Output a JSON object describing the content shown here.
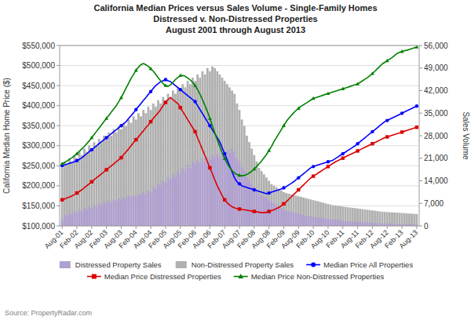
{
  "chart_data": {
    "type": "bar",
    "title": "California Median Prices versus Sales Volume -  Single-Family Homes",
    "subtitle": [
      "Distressed v. Non-Distressed Properties",
      "August 2001 through August 2013"
    ],
    "source": "Source: PropertyRadar.com",
    "ylabel": "California Median Home Price ($)",
    "y2label": "Sales Volume",
    "grid": true,
    "legend": "bottom",
    "ylim": [
      100000,
      550000
    ],
    "yticks": [
      {
        "value": 100000,
        "label": "$100,000"
      },
      {
        "value": 150000,
        "label": "$150,000"
      },
      {
        "value": 200000,
        "label": "$200,000"
      },
      {
        "value": 250000,
        "label": "$250,000"
      },
      {
        "value": 300000,
        "label": "$300,000"
      },
      {
        "value": 350000,
        "label": "$350,000"
      },
      {
        "value": 400000,
        "label": "$400,000"
      },
      {
        "value": 450000,
        "label": "$450,000"
      },
      {
        "value": 500000,
        "label": "$500,000"
      },
      {
        "value": 550000,
        "label": "$550,000"
      }
    ],
    "y2lim": [
      0,
      56000
    ],
    "y2ticks": [
      0,
      {
        "value": 7000,
        "label": "7,000"
      },
      {
        "value": 14000,
        "label": "14,000"
      },
      {
        "value": 21000,
        "label": "21,000"
      },
      {
        "value": 28000,
        "label": "28,000"
      },
      {
        "value": 35000,
        "label": "35,000"
      },
      {
        "value": 42000,
        "label": "42,000"
      },
      {
        "value": 49000,
        "label": "49,000"
      },
      {
        "value": 56000,
        "label": "56,000"
      }
    ],
    "categories": [
      "Aug-01",
      null,
      null,
      null,
      null,
      null,
      "Feb-02",
      null,
      null,
      null,
      null,
      null,
      "Aug-02",
      null,
      null,
      null,
      null,
      null,
      "Feb-03",
      null,
      null,
      null,
      null,
      null,
      "Aug-03",
      null,
      null,
      null,
      null,
      null,
      "Feb-04",
      null,
      null,
      null,
      null,
      null,
      "Aug-04",
      null,
      null,
      null,
      null,
      null,
      "Feb-05",
      null,
      null,
      null,
      null,
      null,
      "Aug-05",
      null,
      null,
      null,
      null,
      null,
      "Feb-06",
      null,
      null,
      null,
      null,
      null,
      "Aug-06",
      null,
      null,
      null,
      null,
      null,
      "Feb-07",
      null,
      null,
      null,
      null,
      null,
      "Aug-07",
      null,
      null,
      null,
      null,
      null,
      "Feb-08",
      null,
      null,
      null,
      null,
      null,
      "Aug-08",
      null,
      null,
      null,
      null,
      null,
      "Feb-09",
      null,
      null,
      null,
      null,
      null,
      "Aug-09",
      null,
      null,
      null,
      null,
      null,
      "Feb-10",
      null,
      null,
      null,
      null,
      null,
      "Aug-10",
      null,
      null,
      null,
      null,
      null,
      "Feb-11",
      null,
      null,
      null,
      null,
      null,
      "Aug-11",
      null,
      null,
      null,
      null,
      null,
      "Feb-12",
      null,
      null,
      null,
      null,
      null,
      "Aug-12",
      null,
      null,
      null,
      null,
      null,
      "Feb-13",
      null,
      null,
      null,
      null,
      null,
      "Aug-13"
    ],
    "series": [
      {
        "name": "Distressed Property Sales",
        "type": "bar",
        "axis": "y2",
        "color": "#b0a0d0",
        "values": [
          2000,
          3500,
          3000,
          4000,
          3500,
          4500,
          4000,
          5000,
          4500,
          5500,
          5000,
          6000,
          5500,
          6500,
          6000,
          7000,
          6500,
          7500,
          7000,
          7800,
          7200,
          8200,
          7800,
          8500,
          8000,
          9000,
          8500,
          9500,
          9000,
          9500,
          9200,
          9800,
          9500,
          10500,
          10000,
          11000,
          10500,
          12000,
          11500,
          13000,
          12500,
          14000,
          13500,
          15000,
          14500,
          16000,
          15000,
          17000,
          16000,
          18000,
          17000,
          19000,
          18000,
          20000,
          19000,
          20500,
          19500,
          21000,
          20000,
          21500,
          20500,
          22000,
          21000,
          22500,
          21500,
          23000,
          22000,
          23500,
          22500,
          24000,
          23000,
          21000,
          20000,
          18000,
          17000,
          15000,
          14000,
          13000,
          12000,
          11000,
          10000,
          9500,
          9000,
          8500,
          8000,
          7500,
          7000,
          6500,
          6000,
          5500,
          5000,
          4800,
          4600,
          4400,
          4200,
          4000,
          3800,
          3600,
          3400,
          3200,
          3000,
          2900,
          2800,
          2700,
          2600,
          2500,
          2400,
          2300,
          2200,
          2100,
          2000,
          1900,
          1800,
          1700,
          1600,
          1500,
          1450,
          1400,
          1350,
          1300,
          1250,
          1200,
          1150,
          1100,
          1050,
          1000,
          950,
          900,
          850,
          800,
          750,
          700,
          680,
          660,
          640,
          620,
          600,
          580,
          560,
          540,
          520,
          500,
          490,
          480,
          470
        ]
      },
      {
        "name": "Non-Distressed Property Sales",
        "type": "bar",
        "axis": "y2",
        "color": "#b0b0b0",
        "values": [
          18000,
          20000,
          19000,
          21000,
          20000,
          22000,
          21000,
          23000,
          22000,
          24000,
          23000,
          25000,
          24000,
          26000,
          25000,
          27000,
          26000,
          28000,
          27000,
          29000,
          28000,
          30000,
          29000,
          31000,
          30000,
          32000,
          31000,
          33000,
          32000,
          34000,
          33000,
          35000,
          34000,
          36000,
          35000,
          37000,
          36000,
          38000,
          37000,
          39000,
          38000,
          40000,
          39000,
          41000,
          40000,
          42000,
          41000,
          43000,
          42000,
          44000,
          43000,
          45000,
          44000,
          46000,
          45000,
          47000,
          46000,
          48000,
          47000,
          49000,
          48000,
          49500,
          49000,
          48000,
          47000,
          46000,
          45000,
          44000,
          43000,
          42000,
          41000,
          38000,
          36000,
          33000,
          31000,
          28000,
          26000,
          24000,
          22000,
          20000,
          18000,
          17000,
          16000,
          15000,
          14000,
          13000,
          12500,
          12000,
          11500,
          11000,
          10500,
          10200,
          10000,
          9800,
          9600,
          9400,
          9200,
          9000,
          8800,
          8600,
          8400,
          8200,
          8000,
          7800,
          7600,
          7400,
          7200,
          7000,
          6800,
          6600,
          6400,
          6300,
          6200,
          6100,
          6000,
          5900,
          5800,
          5700,
          5600,
          5500,
          5400,
          5300,
          5200,
          5100,
          5000,
          4900,
          4800,
          4700,
          4600,
          4500,
          4400,
          4350,
          4300,
          4250,
          4200,
          4150,
          4100,
          4050,
          4000,
          3950,
          3900,
          3850,
          3800,
          3750,
          3700
        ]
      },
      {
        "name": "Median Price All Properties",
        "type": "line",
        "color": "#0000ff",
        "marker": "circle",
        "values": [
          250000,
          252000,
          254000,
          256000,
          258000,
          260000,
          263000,
          266000,
          270000,
          275000,
          280000,
          285000,
          290000,
          295000,
          300000,
          305000,
          310000,
          315000,
          320000,
          325000,
          330000,
          335000,
          340000,
          345000,
          350000,
          355000,
          360000,
          368000,
          375000,
          382000,
          390000,
          398000,
          405000,
          413000,
          420000,
          428000,
          435000,
          443000,
          450000,
          455000,
          460000,
          462000,
          465000,
          462000,
          460000,
          455000,
          450000,
          445000,
          440000,
          435000,
          430000,
          425000,
          420000,
          415000,
          410000,
          400000,
          390000,
          380000,
          370000,
          360000,
          350000,
          340000,
          330000,
          320000,
          310000,
          295000,
          280000,
          265000,
          250000,
          235000,
          220000,
          210000,
          205000,
          200000,
          198000,
          196000,
          194000,
          192000,
          190000,
          188000,
          186000,
          184000,
          182000,
          180000,
          182000,
          184000,
          186000,
          188000,
          190000,
          192000,
          195000,
          198000,
          202000,
          206000,
          210000,
          215000,
          220000,
          225000,
          230000,
          235000,
          240000,
          245000,
          248000,
          250000,
          252000,
          254000,
          256000,
          258000,
          260000,
          262000,
          264000,
          268000,
          272000,
          276000,
          280000,
          284000,
          288000,
          292000,
          296000,
          300000,
          305000,
          310000,
          315000,
          320000,
          325000,
          330000,
          335000,
          340000,
          345000,
          350000,
          355000,
          360000,
          363000,
          366000,
          369000,
          372000,
          375000,
          378000,
          381000,
          384000,
          387000,
          390000,
          393000,
          396000,
          399000
        ]
      },
      {
        "name": "Median Price Distressed Properties",
        "type": "line",
        "color": "#dd0000",
        "marker": "square",
        "values": [
          165000,
          167000,
          170000,
          172000,
          175000,
          178000,
          182000,
          186000,
          190000,
          195000,
          200000,
          205000,
          210000,
          215000,
          220000,
          225000,
          230000,
          235000,
          240000,
          245000,
          250000,
          255000,
          260000,
          265000,
          270000,
          278000,
          285000,
          292000,
          300000,
          308000,
          315000,
          322000,
          330000,
          337000,
          345000,
          352000,
          360000,
          368000,
          375000,
          382000,
          390000,
          400000,
          408000,
          415000,
          420000,
          415000,
          410000,
          405000,
          395000,
          385000,
          375000,
          365000,
          355000,
          345000,
          335000,
          320000,
          305000,
          290000,
          275000,
          260000,
          245000,
          230000,
          215000,
          200000,
          188000,
          175000,
          165000,
          158000,
          152000,
          148000,
          145000,
          143000,
          142000,
          141000,
          140000,
          139000,
          138000,
          137000,
          136000,
          135000,
          134000,
          133000,
          133000,
          134000,
          136000,
          138000,
          140000,
          143000,
          146000,
          150000,
          155000,
          160000,
          166000,
          172000,
          178000,
          184000,
          190000,
          196000,
          202000,
          208000,
          214000,
          220000,
          224000,
          228000,
          232000,
          236000,
          240000,
          244000,
          248000,
          252000,
          256000,
          260000,
          263000,
          266000,
          269000,
          272000,
          275000,
          278000,
          281000,
          284000,
          287000,
          290000,
          293000,
          296000,
          299000,
          302000,
          305000,
          308000,
          311000,
          314000,
          317000,
          320000,
          322000,
          324000,
          326000,
          328000,
          330000,
          332000,
          334000,
          336000,
          338000,
          340000,
          342000,
          344000,
          346000
        ]
      },
      {
        "name": "Median Price Non-Distressed Properties",
        "type": "line",
        "color": "#008000",
        "marker": "triangle",
        "values": [
          255000,
          258000,
          262000,
          266000,
          270000,
          275000,
          280000,
          286000,
          292000,
          298000,
          305000,
          312000,
          320000,
          328000,
          336000,
          344000,
          352000,
          360000,
          368000,
          376000,
          384000,
          392000,
          400000,
          410000,
          420000,
          432000,
          444000,
          456000,
          468000,
          478000,
          488000,
          496000,
          502000,
          505000,
          502000,
          498000,
          492000,
          486000,
          478000,
          470000,
          462000,
          455000,
          450000,
          448000,
          452000,
          458000,
          465000,
          470000,
          475000,
          475000,
          473000,
          469000,
          464000,
          458000,
          450000,
          440000,
          428000,
          415000,
          400000,
          385000,
          368000,
          350000,
          332000,
          315000,
          298000,
          282000,
          268000,
          256000,
          246000,
          238000,
          232000,
          228000,
          226000,
          225000,
          226000,
          228000,
          232000,
          236000,
          242000,
          248000,
          255000,
          262000,
          270000,
          278000,
          288000,
          298000,
          310000,
          320000,
          330000,
          340000,
          350000,
          360000,
          368000,
          375000,
          382000,
          388000,
          393000,
          398000,
          402000,
          406000,
          410000,
          414000,
          418000,
          420000,
          422000,
          424000,
          426000,
          428000,
          430000,
          432000,
          434000,
          436000,
          438000,
          440000,
          442000,
          444000,
          446000,
          448000,
          450000,
          452000,
          454000,
          458000,
          462000,
          466000,
          470000,
          475000,
          480000,
          486000,
          492000,
          498000,
          504000,
          508000,
          512000,
          516000,
          520000,
          525000,
          530000,
          533000,
          535000,
          537000,
          538000,
          540000,
          542000,
          544000,
          546000
        ]
      }
    ]
  }
}
